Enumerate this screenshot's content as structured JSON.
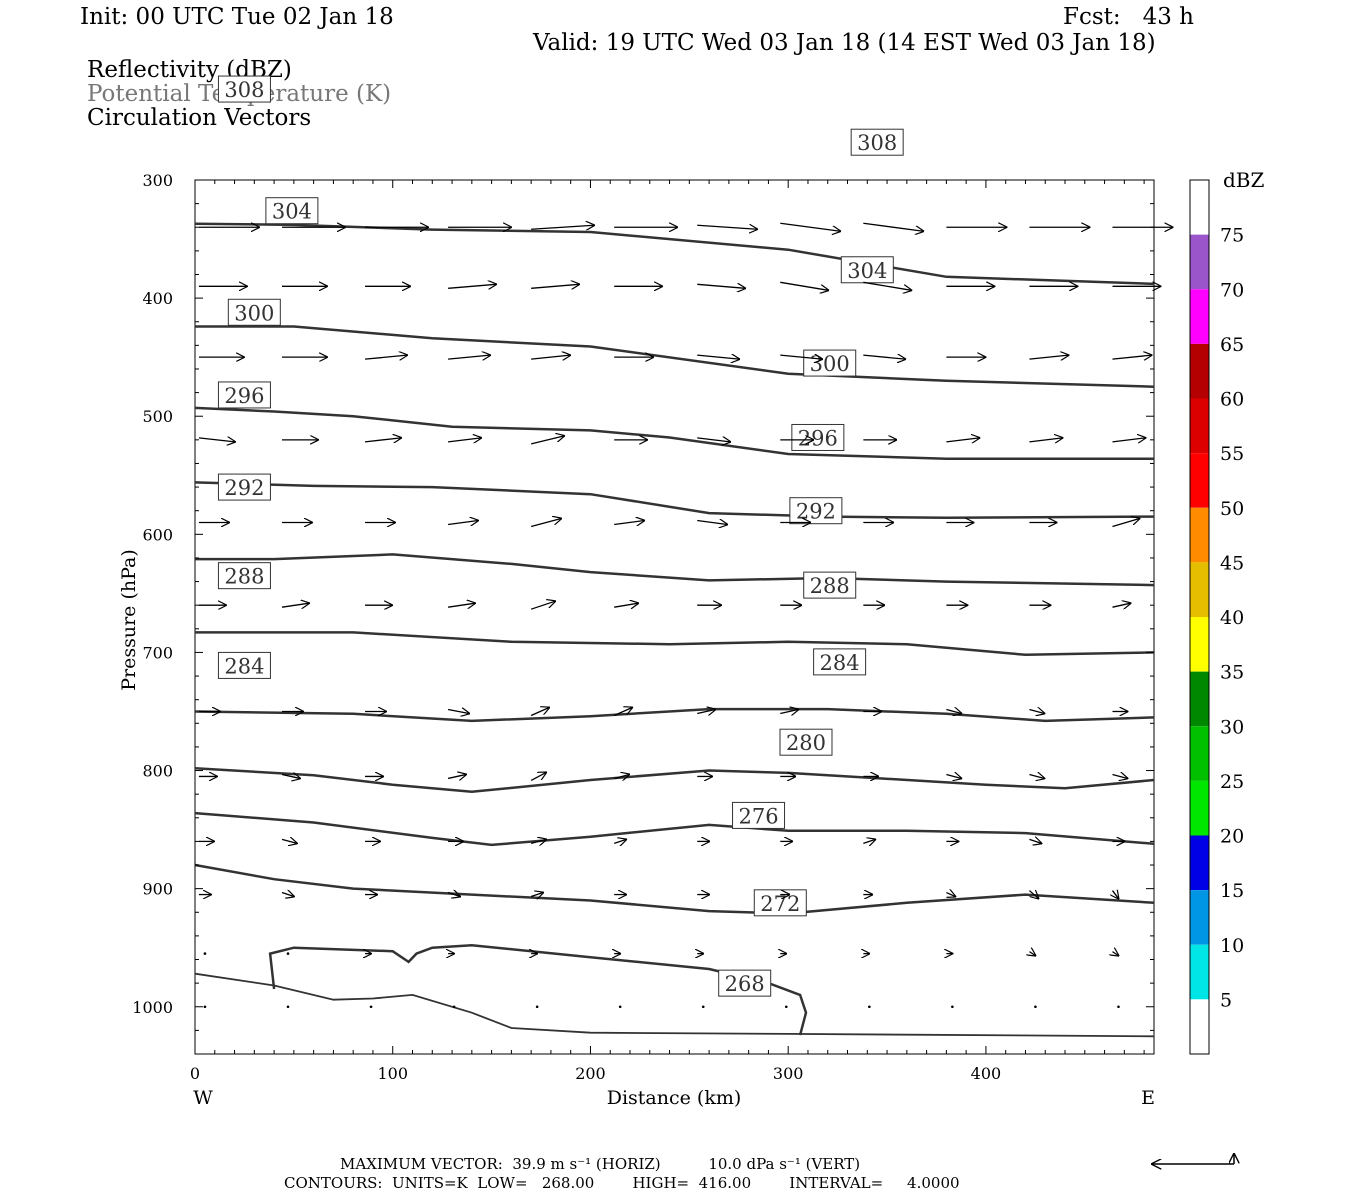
{
  "header": {
    "init": "Init: 00 UTC Tue 02 Jan 18",
    "fcst": "Fcst:   43 h",
    "valid": "Valid: 19 UTC Wed 03 Jan 18 (14 EST Wed 03 Jan 18)"
  },
  "legend": {
    "line1": "Reflectivity (dBZ)",
    "line2": "Potential Temperature (K)",
    "line3": "Circulation Vectors",
    "line2_color": "#777777"
  },
  "footer": {
    "max_vector": "MAXIMUM VECTOR:  39.9 m s⁻¹ (HORIZ)          10.0 dPa s⁻¹ (VERT)",
    "contours": "CONTOURS:  UNITS=K  LOW=   268.00        HIGH=  416.00        INTERVAL=     4.0000"
  },
  "chart_data": {
    "type": "cross-section",
    "xlabel": "Distance (km)",
    "ylabel": "Pressure (hPa)",
    "xlim": [
      0,
      485
    ],
    "ylim": [
      1040,
      300
    ],
    "x_ticks": [
      0,
      100,
      200,
      300,
      400
    ],
    "y_ticks": [
      300,
      400,
      500,
      600,
      700,
      800,
      900,
      1000
    ],
    "x_end_labels": {
      "left": "W",
      "right": "E"
    },
    "colorbar": {
      "unit_label": "dBZ",
      "levels": [
        5,
        10,
        15,
        20,
        25,
        30,
        35,
        40,
        45,
        50,
        55,
        60,
        65,
        70,
        75
      ],
      "colors": [
        "#ffffff",
        "#00e5e5",
        "#0096e6",
        "#0000e6",
        "#00e600",
        "#00c000",
        "#008800",
        "#ffff00",
        "#e6be00",
        "#ff8c00",
        "#ff0000",
        "#dd0000",
        "#b40000",
        "#ff00ff",
        "#9955c9",
        "#ffffff"
      ]
    },
    "theta_contours": [
      {
        "label": "308",
        "points": [
          [
            0,
            337
          ],
          [
            50,
            338
          ],
          [
            120,
            342
          ],
          [
            200,
            344
          ],
          [
            300,
            359
          ],
          [
            380,
            382
          ],
          [
            485,
            388
          ]
        ]
      },
      {
        "label": "304",
        "points": [
          [
            0,
            424
          ],
          [
            50,
            424
          ],
          [
            120,
            434
          ],
          [
            200,
            441
          ],
          [
            300,
            464
          ],
          [
            380,
            470
          ],
          [
            485,
            475
          ]
        ]
      },
      {
        "label": "300",
        "points": [
          [
            0,
            493
          ],
          [
            40,
            496
          ],
          [
            80,
            500
          ],
          [
            130,
            509
          ],
          [
            200,
            512
          ],
          [
            240,
            518
          ],
          [
            300,
            532
          ],
          [
            380,
            536
          ],
          [
            485,
            536
          ]
        ]
      },
      {
        "label": "296",
        "points": [
          [
            0,
            556
          ],
          [
            60,
            559
          ],
          [
            120,
            560
          ],
          [
            200,
            566
          ],
          [
            260,
            582
          ],
          [
            320,
            585
          ],
          [
            380,
            586
          ],
          [
            485,
            585
          ]
        ]
      },
      {
        "label": "292",
        "points": [
          [
            0,
            621
          ],
          [
            40,
            621
          ],
          [
            100,
            617
          ],
          [
            160,
            625
          ],
          [
            200,
            632
          ],
          [
            260,
            639
          ],
          [
            320,
            637
          ],
          [
            380,
            640
          ],
          [
            485,
            643
          ]
        ]
      },
      {
        "label": "288",
        "points": [
          [
            0,
            683
          ],
          [
            80,
            683
          ],
          [
            160,
            691
          ],
          [
            240,
            693
          ],
          [
            300,
            691
          ],
          [
            360,
            693
          ],
          [
            420,
            702
          ],
          [
            485,
            700
          ]
        ]
      },
      {
        "label": "284",
        "points": [
          [
            0,
            750
          ],
          [
            80,
            752
          ],
          [
            140,
            758
          ],
          [
            200,
            754
          ],
          [
            260,
            748
          ],
          [
            320,
            748
          ],
          [
            380,
            752
          ],
          [
            430,
            758
          ],
          [
            485,
            755
          ]
        ]
      },
      {
        "label": "280",
        "points": [
          [
            0,
            798
          ],
          [
            60,
            804
          ],
          [
            100,
            812
          ],
          [
            140,
            818
          ],
          [
            200,
            808
          ],
          [
            260,
            800
          ],
          [
            300,
            802
          ],
          [
            340,
            806
          ],
          [
            400,
            812
          ],
          [
            440,
            815
          ],
          [
            485,
            808
          ]
        ]
      },
      {
        "label": "276",
        "points": [
          [
            0,
            836
          ],
          [
            60,
            844
          ],
          [
            120,
            857
          ],
          [
            150,
            863
          ],
          [
            200,
            856
          ],
          [
            260,
            846
          ],
          [
            300,
            851
          ],
          [
            360,
            851
          ],
          [
            420,
            853
          ],
          [
            485,
            862
          ]
        ]
      },
      {
        "label": "272",
        "points": [
          [
            0,
            880
          ],
          [
            40,
            892
          ],
          [
            80,
            900
          ],
          [
            140,
            905
          ],
          [
            200,
            910
          ],
          [
            260,
            919
          ],
          [
            300,
            921
          ],
          [
            360,
            912
          ],
          [
            420,
            905
          ],
          [
            485,
            912
          ]
        ]
      },
      {
        "label": "268",
        "points": [
          [
            40,
            985
          ],
          [
            38,
            955
          ],
          [
            50,
            950
          ],
          [
            100,
            953
          ],
          [
            108,
            962
          ],
          [
            112,
            955
          ],
          [
            120,
            950
          ],
          [
            140,
            948
          ],
          [
            200,
            958
          ],
          [
            260,
            968
          ],
          [
            290,
            980
          ],
          [
            306,
            990
          ],
          [
            309,
            1005
          ],
          [
            306,
            1024
          ]
        ]
      }
    ],
    "surface_line": [
      [
        0,
        972
      ],
      [
        40,
        982
      ],
      [
        70,
        994
      ],
      [
        90,
        993
      ],
      [
        110,
        990
      ],
      [
        140,
        1005
      ],
      [
        160,
        1018
      ],
      [
        200,
        1022
      ],
      [
        300,
        1023
      ],
      [
        485,
        1025
      ]
    ],
    "wind_vectors": [
      {
        "p": 340,
        "u": [
          40,
          42,
          42,
          42,
          42,
          42,
          40,
          40,
          40,
          40,
          40,
          40
        ],
        "w": [
          0,
          0,
          0,
          0,
          -1,
          0,
          1,
          2,
          2,
          0,
          0,
          0
        ]
      },
      {
        "p": 390,
        "u": [
          32,
          30,
          30,
          32,
          32,
          32,
          32,
          32,
          32,
          32,
          32,
          32
        ],
        "w": [
          0,
          0,
          0,
          -1,
          -1,
          0,
          1,
          2,
          2,
          0,
          0,
          0
        ]
      },
      {
        "p": 450,
        "u": [
          30,
          30,
          28,
          28,
          26,
          26,
          28,
          28,
          28,
          26,
          26,
          26
        ],
        "w": [
          0,
          0,
          -1,
          -1,
          -1,
          0,
          1,
          1,
          1,
          0,
          -1,
          -1
        ]
      },
      {
        "p": 520,
        "u": [
          24,
          24,
          24,
          22,
          22,
          22,
          22,
          22,
          22,
          22,
          22,
          22
        ],
        "w": [
          1,
          0,
          -1,
          -1,
          -2,
          0,
          1,
          0,
          0,
          -1,
          -1,
          -1
        ]
      },
      {
        "p": 590,
        "u": [
          20,
          20,
          20,
          20,
          20,
          20,
          20,
          20,
          20,
          18,
          18,
          18
        ],
        "w": [
          0,
          0,
          0,
          -1,
          -2,
          -1,
          1,
          0,
          0,
          0,
          0,
          -2
        ]
      },
      {
        "p": 660,
        "u": [
          18,
          18,
          18,
          18,
          16,
          16,
          16,
          14,
          14,
          14,
          14,
          12
        ],
        "w": [
          0,
          -1,
          0,
          -1,
          -2,
          -1,
          0,
          0,
          0,
          0,
          0,
          -1
        ]
      },
      {
        "p": 750,
        "u": [
          14,
          14,
          14,
          14,
          12,
          12,
          12,
          12,
          12,
          10,
          10,
          10
        ],
        "w": [
          0,
          0,
          0,
          1,
          -2,
          -2,
          -1,
          -1,
          0,
          1,
          1,
          0
        ]
      },
      {
        "p": 805,
        "u": [
          12,
          12,
          12,
          12,
          10,
          10,
          10,
          10,
          10,
          10,
          10,
          10
        ],
        "w": [
          0,
          1,
          0,
          -1,
          -2,
          -1,
          0,
          0,
          0,
          1,
          1,
          1
        ]
      },
      {
        "p": 860,
        "u": [
          10,
          10,
          10,
          10,
          10,
          8,
          8,
          8,
          8,
          8,
          8,
          8
        ],
        "w": [
          0,
          1,
          0,
          0,
          -1,
          -1,
          0,
          0,
          -1,
          0,
          1,
          0
        ]
      },
      {
        "p": 905,
        "u": [
          8,
          8,
          8,
          8,
          8,
          8,
          8,
          6,
          6,
          6,
          6,
          4
        ],
        "w": [
          0,
          1,
          0,
          1,
          -1,
          0,
          0,
          0,
          0,
          1,
          2,
          2
        ]
      },
      {
        "p": 955,
        "u": [
          0,
          0,
          4,
          4,
          4,
          4,
          4,
          4,
          4,
          4,
          4,
          4
        ],
        "w": [
          0,
          0,
          0,
          0,
          0,
          0,
          0,
          0,
          0,
          0,
          1,
          1
        ]
      },
      {
        "p": 1000,
        "u": [
          0,
          0,
          0,
          0,
          0,
          0,
          0,
          0,
          0,
          0,
          0,
          0
        ],
        "w": [
          0,
          0,
          0,
          0,
          0,
          0,
          0,
          0,
          0,
          0,
          0,
          0
        ]
      }
    ]
  }
}
